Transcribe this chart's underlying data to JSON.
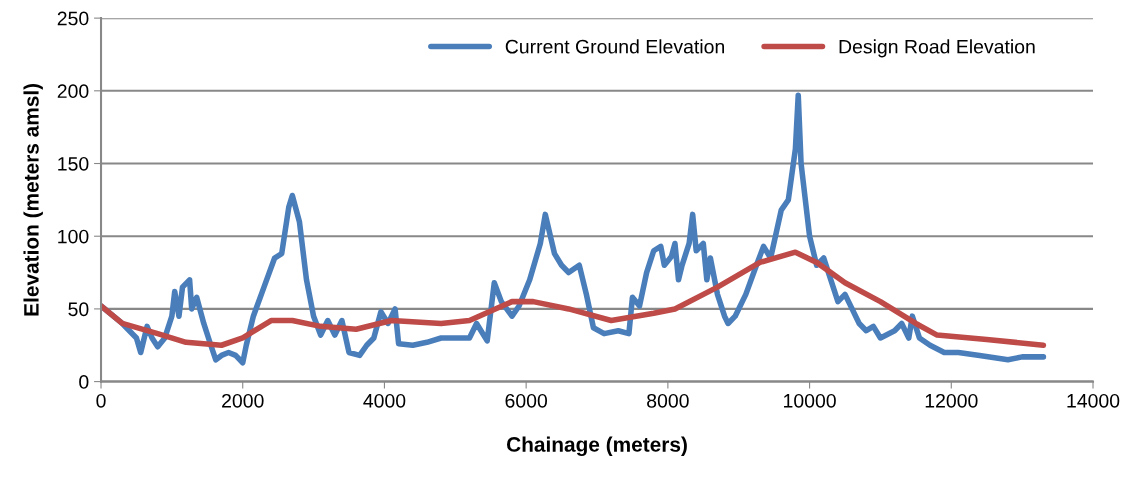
{
  "chart_data": {
    "type": "line",
    "xlabel": "Chainage (meters)",
    "ylabel": "Elevation (meters amsl)",
    "xlim": [
      0,
      14000
    ],
    "xticks": [
      0,
      2000,
      4000,
      6000,
      8000,
      10000,
      12000,
      14000
    ],
    "ylim": [
      0,
      250
    ],
    "yticks": [
      0,
      50,
      100,
      150,
      200,
      250
    ],
    "grid": "y",
    "legend": "top right",
    "marker": "none",
    "line_style": "solid",
    "series": [
      {
        "name": "Current Ground Elevation",
        "color": "#4a7ebb",
        "x": [
          0,
          300,
          500,
          560,
          650,
          720,
          800,
          900,
          1000,
          1040,
          1100,
          1150,
          1250,
          1280,
          1350,
          1450,
          1550,
          1620,
          1700,
          1800,
          1900,
          2000,
          2050,
          2150,
          2300,
          2450,
          2550,
          2650,
          2700,
          2800,
          2900,
          3000,
          3100,
          3200,
          3300,
          3400,
          3500,
          3650,
          3750,
          3850,
          3950,
          4050,
          4150,
          4200,
          4400,
          4600,
          4800,
          5000,
          5200,
          5300,
          5450,
          5550,
          5650,
          5800,
          5900,
          6050,
          6200,
          6270,
          6400,
          6500,
          6600,
          6750,
          6850,
          6950,
          7100,
          7300,
          7450,
          7500,
          7600,
          7700,
          7800,
          7900,
          7950,
          8050,
          8100,
          8150,
          8200,
          8300,
          8350,
          8400,
          8500,
          8550,
          8600,
          8700,
          8800,
          8850,
          8950,
          9100,
          9250,
          9350,
          9450,
          9600,
          9700,
          9800,
          9840,
          9880,
          10000,
          10100,
          10200,
          10300,
          10400,
          10500,
          10600,
          10700,
          10800,
          10900,
          11000,
          11200,
          11300,
          11400,
          11450,
          11550,
          11700,
          11900,
          12100,
          12400,
          12800,
          13000,
          13300
        ],
        "values": [
          52,
          40,
          30,
          20,
          38,
          30,
          24,
          30,
          45,
          62,
          45,
          65,
          70,
          50,
          58,
          40,
          25,
          15,
          18,
          20,
          18,
          13,
          25,
          45,
          65,
          85,
          88,
          120,
          128,
          110,
          70,
          45,
          32,
          42,
          32,
          42,
          20,
          18,
          25,
          30,
          48,
          40,
          50,
          26,
          25,
          27,
          30,
          30,
          30,
          40,
          28,
          68,
          55,
          45,
          52,
          70,
          95,
          115,
          88,
          80,
          75,
          80,
          60,
          37,
          33,
          35,
          33,
          58,
          52,
          75,
          90,
          93,
          80,
          86,
          95,
          70,
          80,
          95,
          115,
          90,
          95,
          70,
          85,
          60,
          45,
          40,
          45,
          60,
          80,
          93,
          85,
          118,
          125,
          160,
          197,
          150,
          100,
          80,
          85,
          70,
          55,
          60,
          50,
          40,
          35,
          38,
          30,
          35,
          40,
          30,
          45,
          30,
          25,
          20,
          20,
          18,
          15,
          17,
          17
        ]
      },
      {
        "name": "Design Road Elevation",
        "color": "#be4b48",
        "x": [
          0,
          300,
          800,
          1200,
          1700,
          2000,
          2400,
          2700,
          3100,
          3600,
          4100,
          4800,
          5200,
          5800,
          6100,
          6600,
          7200,
          7800,
          8100,
          8700,
          9300,
          9800,
          10100,
          10500,
          11000,
          11500,
          11800,
          12500,
          13300
        ],
        "values": [
          52,
          40,
          33,
          27,
          25,
          30,
          42,
          42,
          38,
          36,
          42,
          40,
          42,
          55,
          55,
          50,
          42,
          47,
          50,
          65,
          82,
          89,
          82,
          68,
          55,
          40,
          32,
          29,
          25
        ]
      }
    ]
  }
}
